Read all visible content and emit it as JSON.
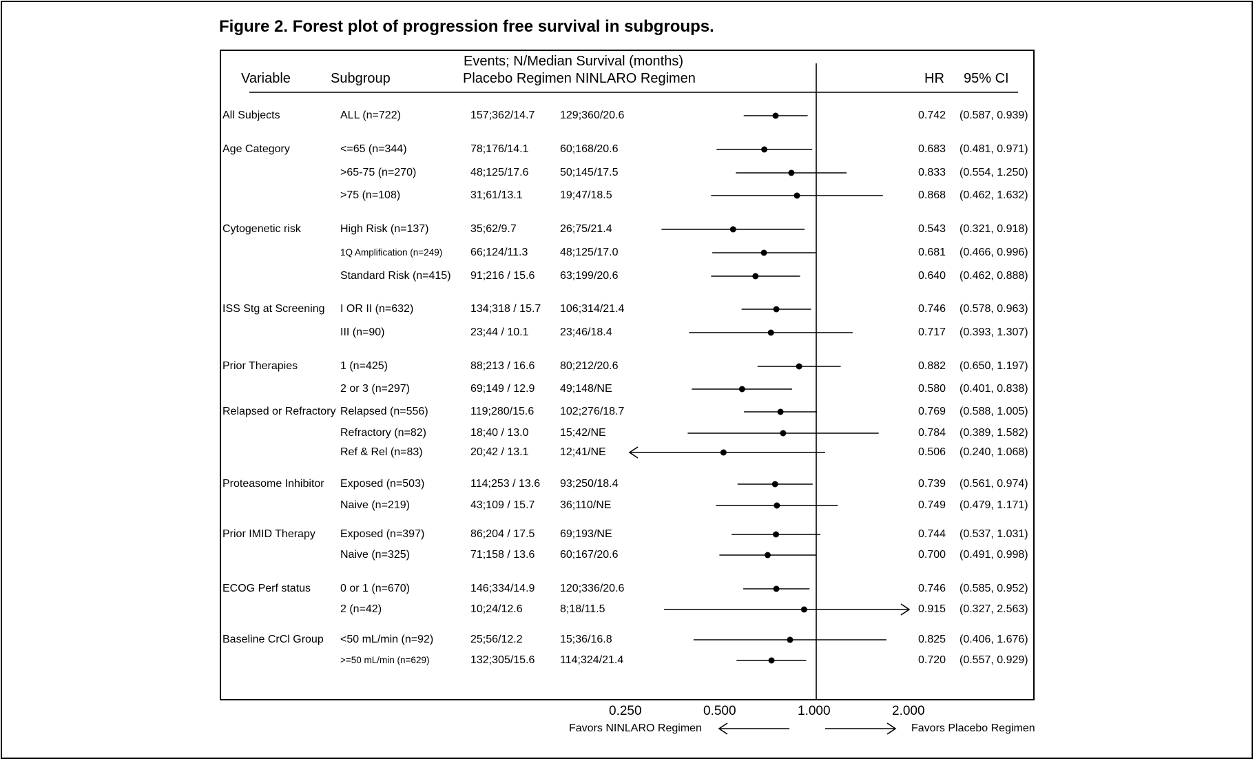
{
  "title": "Figure 2. Forest plot of progression free survival in subgroups.",
  "header": {
    "variable": "Variable",
    "subgroup": "Subgroup",
    "events_line1": "Events; N/Median Survival (months)",
    "events_line2": "Placebo Regimen NINLARO Regimen",
    "hr": "HR",
    "ci": "95% CI"
  },
  "favors": {
    "left": "Favors NINLARO Regimen",
    "right": "Favors Placebo Regimen"
  },
  "chart_data": {
    "type": "forest",
    "x_scale": "log",
    "xlim": [
      0.22,
      2.5
    ],
    "reference_line": 1.0,
    "x_ticks": [
      0.25,
      0.5,
      1.0,
      2.0
    ],
    "x_tick_labels": [
      "0.250",
      "0.500",
      "1.000",
      "2.000"
    ],
    "rows": [
      {
        "variable": "All Subjects",
        "subgroup": "ALL (n=722)",
        "small": false,
        "placebo": "157;362/14.7",
        "ninlaro": "129;360/20.6",
        "hr": 0.742,
        "lo": 0.587,
        "hi": 0.939,
        "hr_text": "0.742",
        "ci_text": "(0.587, 0.939)"
      },
      {
        "variable": "Age Category",
        "subgroup": "<=65 (n=344)",
        "small": false,
        "placebo": "78;176/14.1",
        "ninlaro": "60;168/20.6",
        "hr": 0.683,
        "lo": 0.481,
        "hi": 0.971,
        "hr_text": "0.683",
        "ci_text": "(0.481, 0.971)"
      },
      {
        "variable": "",
        "subgroup": ">65-75 (n=270)",
        "small": false,
        "placebo": "48;125/17.6",
        "ninlaro": "50;145/17.5",
        "hr": 0.833,
        "lo": 0.554,
        "hi": 1.25,
        "hr_text": "0.833",
        "ci_text": "(0.554, 1.250)"
      },
      {
        "variable": "",
        "subgroup": ">75 (n=108)",
        "small": false,
        "placebo": "31;61/13.1",
        "ninlaro": "19;47/18.5",
        "hr": 0.868,
        "lo": 0.462,
        "hi": 1.632,
        "hr_text": "0.868",
        "ci_text": "(0.462, 1.632)"
      },
      {
        "variable": "Cytogenetic risk",
        "subgroup": "High Risk (n=137)",
        "small": false,
        "placebo": "35;62/9.7",
        "ninlaro": "26;75/21.4",
        "hr": 0.543,
        "lo": 0.321,
        "hi": 0.918,
        "hr_text": "0.543",
        "ci_text": "(0.321, 0.918)"
      },
      {
        "variable": "",
        "subgroup": "1Q Amplification (n=249)",
        "small": true,
        "placebo": "66;124/11.3",
        "ninlaro": "48;125/17.0",
        "hr": 0.681,
        "lo": 0.466,
        "hi": 0.996,
        "hr_text": "0.681",
        "ci_text": "(0.466, 0.996)"
      },
      {
        "variable": "",
        "subgroup": "Standard Risk (n=415)",
        "small": false,
        "placebo": "91;216 / 15.6",
        "ninlaro": "63;199/20.6",
        "hr": 0.64,
        "lo": 0.462,
        "hi": 0.888,
        "hr_text": "0.640",
        "ci_text": "(0.462, 0.888)"
      },
      {
        "variable": "ISS Stg at Screening",
        "subgroup": "I OR II (n=632)",
        "small": false,
        "placebo": "134;318 / 15.7",
        "ninlaro": "106;314/21.4",
        "hr": 0.746,
        "lo": 0.578,
        "hi": 0.963,
        "hr_text": "0.746",
        "ci_text": "(0.578, 0.963)"
      },
      {
        "variable": "",
        "subgroup": "III (n=90)",
        "small": false,
        "placebo": "23;44 / 10.1",
        "ninlaro": "23;46/18.4",
        "hr": 0.717,
        "lo": 0.393,
        "hi": 1.307,
        "hr_text": "0.717",
        "ci_text": "(0.393, 1.307)"
      },
      {
        "variable": "Prior Therapies",
        "subgroup": "1 (n=425)",
        "small": false,
        "placebo": "88;213 / 16.6",
        "ninlaro": "80;212/20.6",
        "hr": 0.882,
        "lo": 0.65,
        "hi": 1.197,
        "hr_text": "0.882",
        "ci_text": "(0.650, 1.197)"
      },
      {
        "variable": "",
        "subgroup": "2 or 3 (n=297)",
        "small": false,
        "placebo": "69;149 / 12.9",
        "ninlaro": "49;148/NE",
        "hr": 0.58,
        "lo": 0.401,
        "hi": 0.838,
        "hr_text": "0.580",
        "ci_text": "(0.401, 0.838)"
      },
      {
        "variable": "Relapsed or Refractory",
        "subgroup": "Relapsed (n=556)",
        "small": false,
        "placebo": "119;280/15.6",
        "ninlaro": "102;276/18.7",
        "hr": 0.769,
        "lo": 0.588,
        "hi": 1.005,
        "hr_text": "0.769",
        "ci_text": "(0.588, 1.005)"
      },
      {
        "variable": "",
        "subgroup": "Refractory (n=82)",
        "small": false,
        "placebo": "18;40 / 13.0",
        "ninlaro": "15;42/NE",
        "hr": 0.784,
        "lo": 0.389,
        "hi": 1.582,
        "hr_text": "0.784",
        "ci_text": "(0.389, 1.582)"
      },
      {
        "variable": "",
        "subgroup": "Ref & Rel (n=83)",
        "small": false,
        "placebo": "20;42 / 13.1",
        "ninlaro": "12;41/NE",
        "hr": 0.506,
        "lo": 0.24,
        "hi": 1.068,
        "hr_text": "0.506",
        "ci_text": "(0.240, 1.068)",
        "arrow_left": true
      },
      {
        "variable": "Proteasome Inhibitor",
        "subgroup": "Exposed (n=503)",
        "small": false,
        "placebo": "114;253 / 13.6",
        "ninlaro": "93;250/18.4",
        "hr": 0.739,
        "lo": 0.561,
        "hi": 0.974,
        "hr_text": "0.739",
        "ci_text": "(0.561, 0.974)"
      },
      {
        "variable": "",
        "subgroup": "Naive (n=219)",
        "small": false,
        "placebo": "43;109 / 15.7",
        "ninlaro": "36;110/NE",
        "hr": 0.749,
        "lo": 0.479,
        "hi": 1.171,
        "hr_text": "0.749",
        "ci_text": "(0.479, 1.171)"
      },
      {
        "variable": "Prior IMID Therapy",
        "subgroup": "Exposed (n=397)",
        "small": false,
        "placebo": "86;204 / 17.5",
        "ninlaro": "69;193/NE",
        "hr": 0.744,
        "lo": 0.537,
        "hi": 1.031,
        "hr_text": "0.744",
        "ci_text": "(0.537, 1.031)"
      },
      {
        "variable": "",
        "subgroup": "Naive (n=325)",
        "small": false,
        "placebo": "71;158 / 13.6",
        "ninlaro": "60;167/20.6",
        "hr": 0.7,
        "lo": 0.491,
        "hi": 0.998,
        "hr_text": "0.700",
        "ci_text": "(0.491, 0.998)"
      },
      {
        "variable": "ECOG Perf status",
        "subgroup": "0 or 1 (n=670)",
        "small": false,
        "placebo": "146;334/14.9",
        "ninlaro": "120;336/20.6",
        "hr": 0.746,
        "lo": 0.585,
        "hi": 0.952,
        "hr_text": "0.746",
        "ci_text": "(0.585, 0.952)"
      },
      {
        "variable": "",
        "subgroup": "2 (n=42)",
        "small": false,
        "placebo": "10;24/12.6",
        "ninlaro": "8;18/11.5",
        "hr": 0.915,
        "lo": 0.327,
        "hi": 2.563,
        "hr_text": "0.915",
        "ci_text": "(0.327, 2.563)",
        "arrow_right": true
      },
      {
        "variable": "Baseline CrCl Group",
        "subgroup": "<50 mL/min (n=92)",
        "small": false,
        "placebo": "25;56/12.2",
        "ninlaro": "15;36/16.8",
        "hr": 0.825,
        "lo": 0.406,
        "hi": 1.676,
        "hr_text": "0.825",
        "ci_text": "(0.406, 1.676)"
      },
      {
        "variable": "",
        "subgroup": ">=50 mL/min (n=629)",
        "small": true,
        "placebo": "132;305/15.6",
        "ninlaro": "114;324/21.4",
        "hr": 0.72,
        "lo": 0.557,
        "hi": 0.929,
        "hr_text": "0.720",
        "ci_text": "(0.557, 0.929)"
      }
    ]
  }
}
